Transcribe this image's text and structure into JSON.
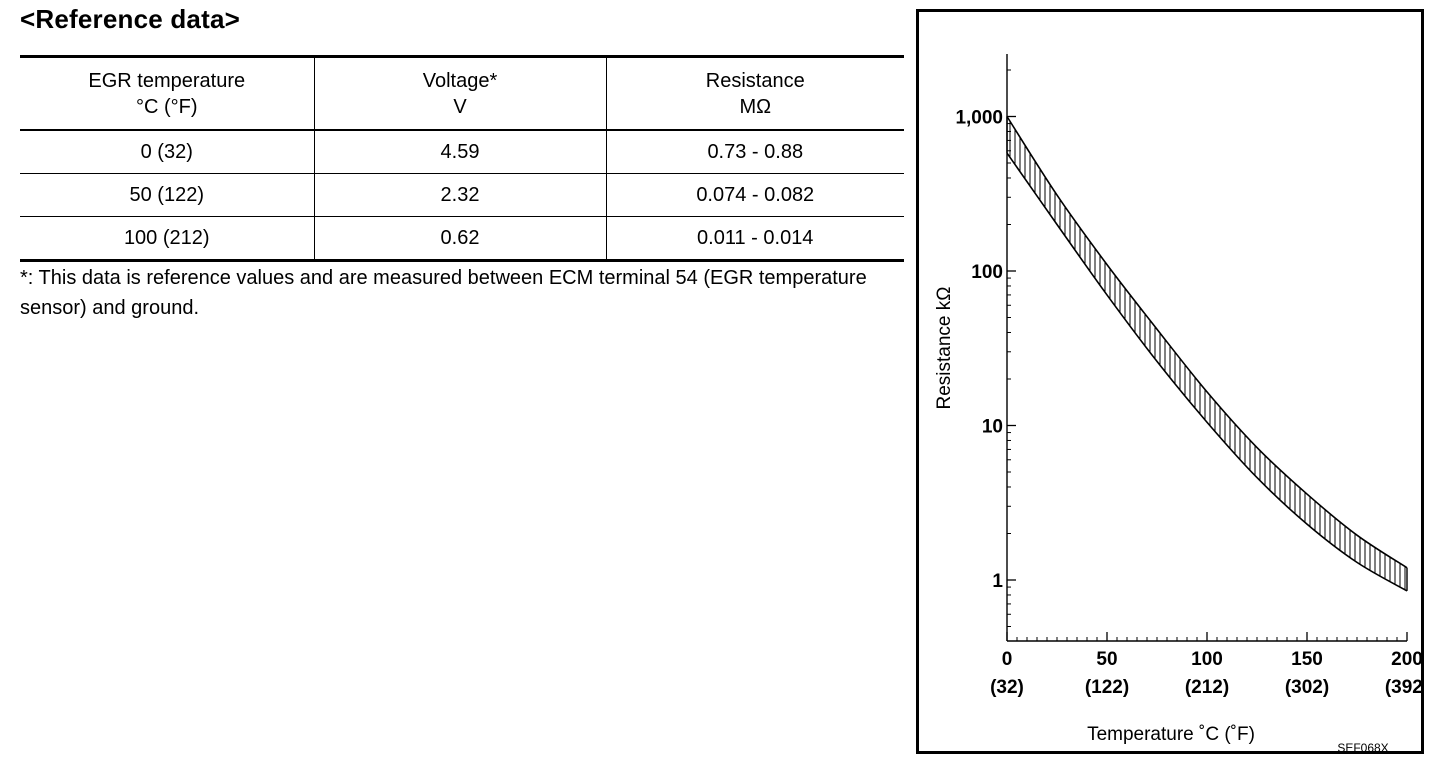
{
  "heading": "<Reference data>",
  "table": {
    "headers": [
      {
        "line1": "EGR temperature",
        "line2": "°C (°F)"
      },
      {
        "line1": "Voltage*",
        "line2": "V"
      },
      {
        "line1": "Resistance",
        "line2": "MΩ"
      }
    ],
    "rows": [
      {
        "temp": "0 (32)",
        "voltage": "4.59",
        "resistance": "0.73 - 0.88"
      },
      {
        "temp": "50 (122)",
        "voltage": "2.32",
        "resistance": "0.074 - 0.082"
      },
      {
        "temp": "100 (212)",
        "voltage": "0.62",
        "resistance": "0.011 - 0.014"
      }
    ]
  },
  "footnote": "*: This data is reference values and are measured between ECM terminal 54 (EGR temperature sensor) and ground.",
  "figure_code": "SEF068X",
  "chart_data": {
    "type": "area",
    "ylabel": "Resistance kΩ",
    "xlabel": "Temperature ˚C  (˚F)",
    "y_scale": "log",
    "ylim": [
      0.4,
      2500
    ],
    "xlim": [
      0,
      200
    ],
    "y_ticks": [
      {
        "value": 1,
        "label": "1"
      },
      {
        "value": 10,
        "label": "10"
      },
      {
        "value": 100,
        "label": "100"
      },
      {
        "value": 1000,
        "label": "1,000"
      }
    ],
    "x_ticks": [
      {
        "value": 0,
        "label": "0",
        "sublabel": "(32)"
      },
      {
        "value": 50,
        "label": "50",
        "sublabel": "(122)"
      },
      {
        "value": 100,
        "label": "100",
        "sublabel": "(212)"
      },
      {
        "value": 150,
        "label": "150",
        "sublabel": "(302)"
      },
      {
        "value": 200,
        "label": "200",
        "sublabel": "(392)"
      }
    ],
    "band": {
      "x": [
        0,
        25,
        50,
        75,
        100,
        125,
        150,
        175,
        200
      ],
      "upper": [
        1000,
        310,
        110,
        42,
        16.5,
        7.2,
        3.6,
        1.95,
        1.2
      ],
      "lower": [
        580,
        200,
        70,
        26,
        10.5,
        4.6,
        2.3,
        1.3,
        0.85
      ]
    },
    "grid": false,
    "legend": "none"
  }
}
